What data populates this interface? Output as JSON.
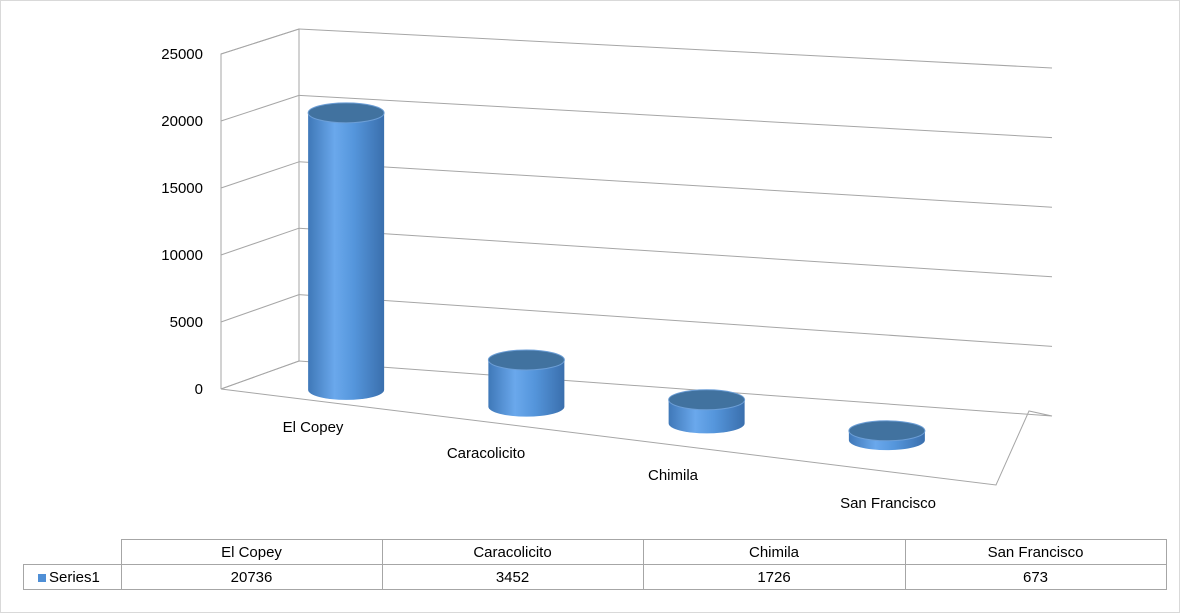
{
  "chart_data": {
    "type": "bar",
    "style": "3d-cylinder",
    "categories": [
      "El Copey",
      "Caracolicito",
      "Chimila",
      "San Francisco"
    ],
    "series": [
      {
        "name": "Series1",
        "values": [
          20736,
          3452,
          1726,
          673
        ],
        "color": "#4f8fd6"
      }
    ],
    "ylim": [
      0,
      25000
    ],
    "yticks": [
      0,
      5000,
      10000,
      15000,
      20000,
      25000
    ],
    "grid": true,
    "data_table": true,
    "legend_position": "data-table"
  },
  "colors": {
    "bar_side": "#4f8fd6",
    "bar_top": "#41729f",
    "gridline": "#a6a6a6",
    "table_border": "#a6a6a6"
  }
}
